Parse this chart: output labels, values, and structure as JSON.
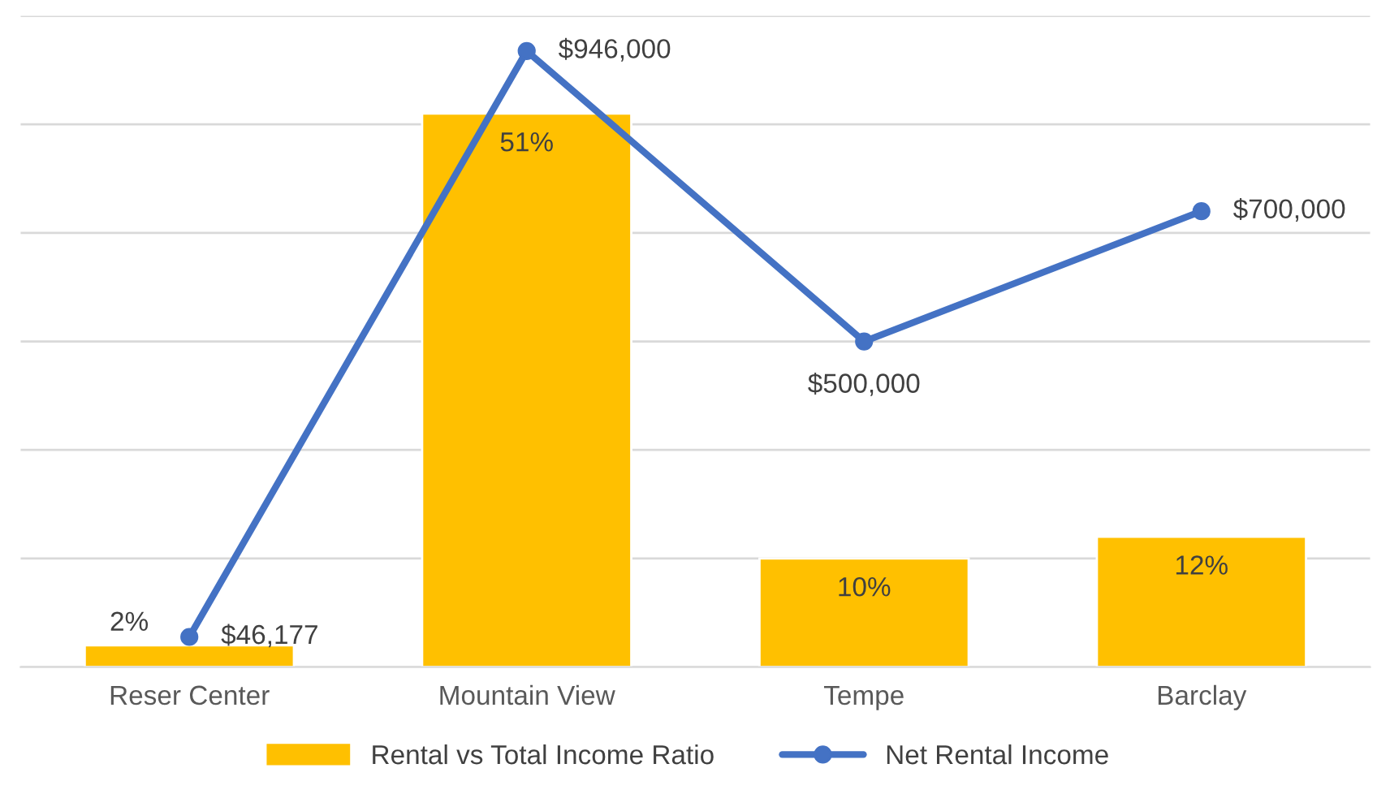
{
  "chart_data": {
    "type": "bar",
    "categories": [
      "Reser Center",
      "Mountain View",
      "Tempe",
      "Barclay"
    ],
    "series": [
      {
        "name": "Rental vs Total Income Ratio",
        "color": "#ffc000",
        "values": [
          2,
          51,
          10,
          12
        ],
        "value_labels": [
          "2%",
          "51%",
          "10%",
          "12%"
        ]
      },
      {
        "name": "Net Rental Income",
        "type": "line",
        "axis": "y2",
        "color": "#4472c4",
        "marker": "circle",
        "values": [
          46177,
          946000,
          500000,
          700000
        ],
        "value_labels": [
          "$46,177",
          "$946,000",
          "$500,000",
          "$700,000"
        ]
      }
    ],
    "ylim": [
      0,
      60
    ],
    "yticks": [
      {
        "value": 0,
        "label": null
      },
      {
        "value": 10,
        "label": null
      },
      {
        "value": 20,
        "label": null
      },
      {
        "value": 30,
        "label": null
      },
      {
        "value": 40,
        "label": null
      },
      {
        "value": 50,
        "label": null
      },
      {
        "value": 60,
        "label": null
      }
    ],
    "y2lim": [
      0,
      1000000
    ],
    "tick_labels": "x",
    "grid": "y",
    "legend": "bottom"
  }
}
